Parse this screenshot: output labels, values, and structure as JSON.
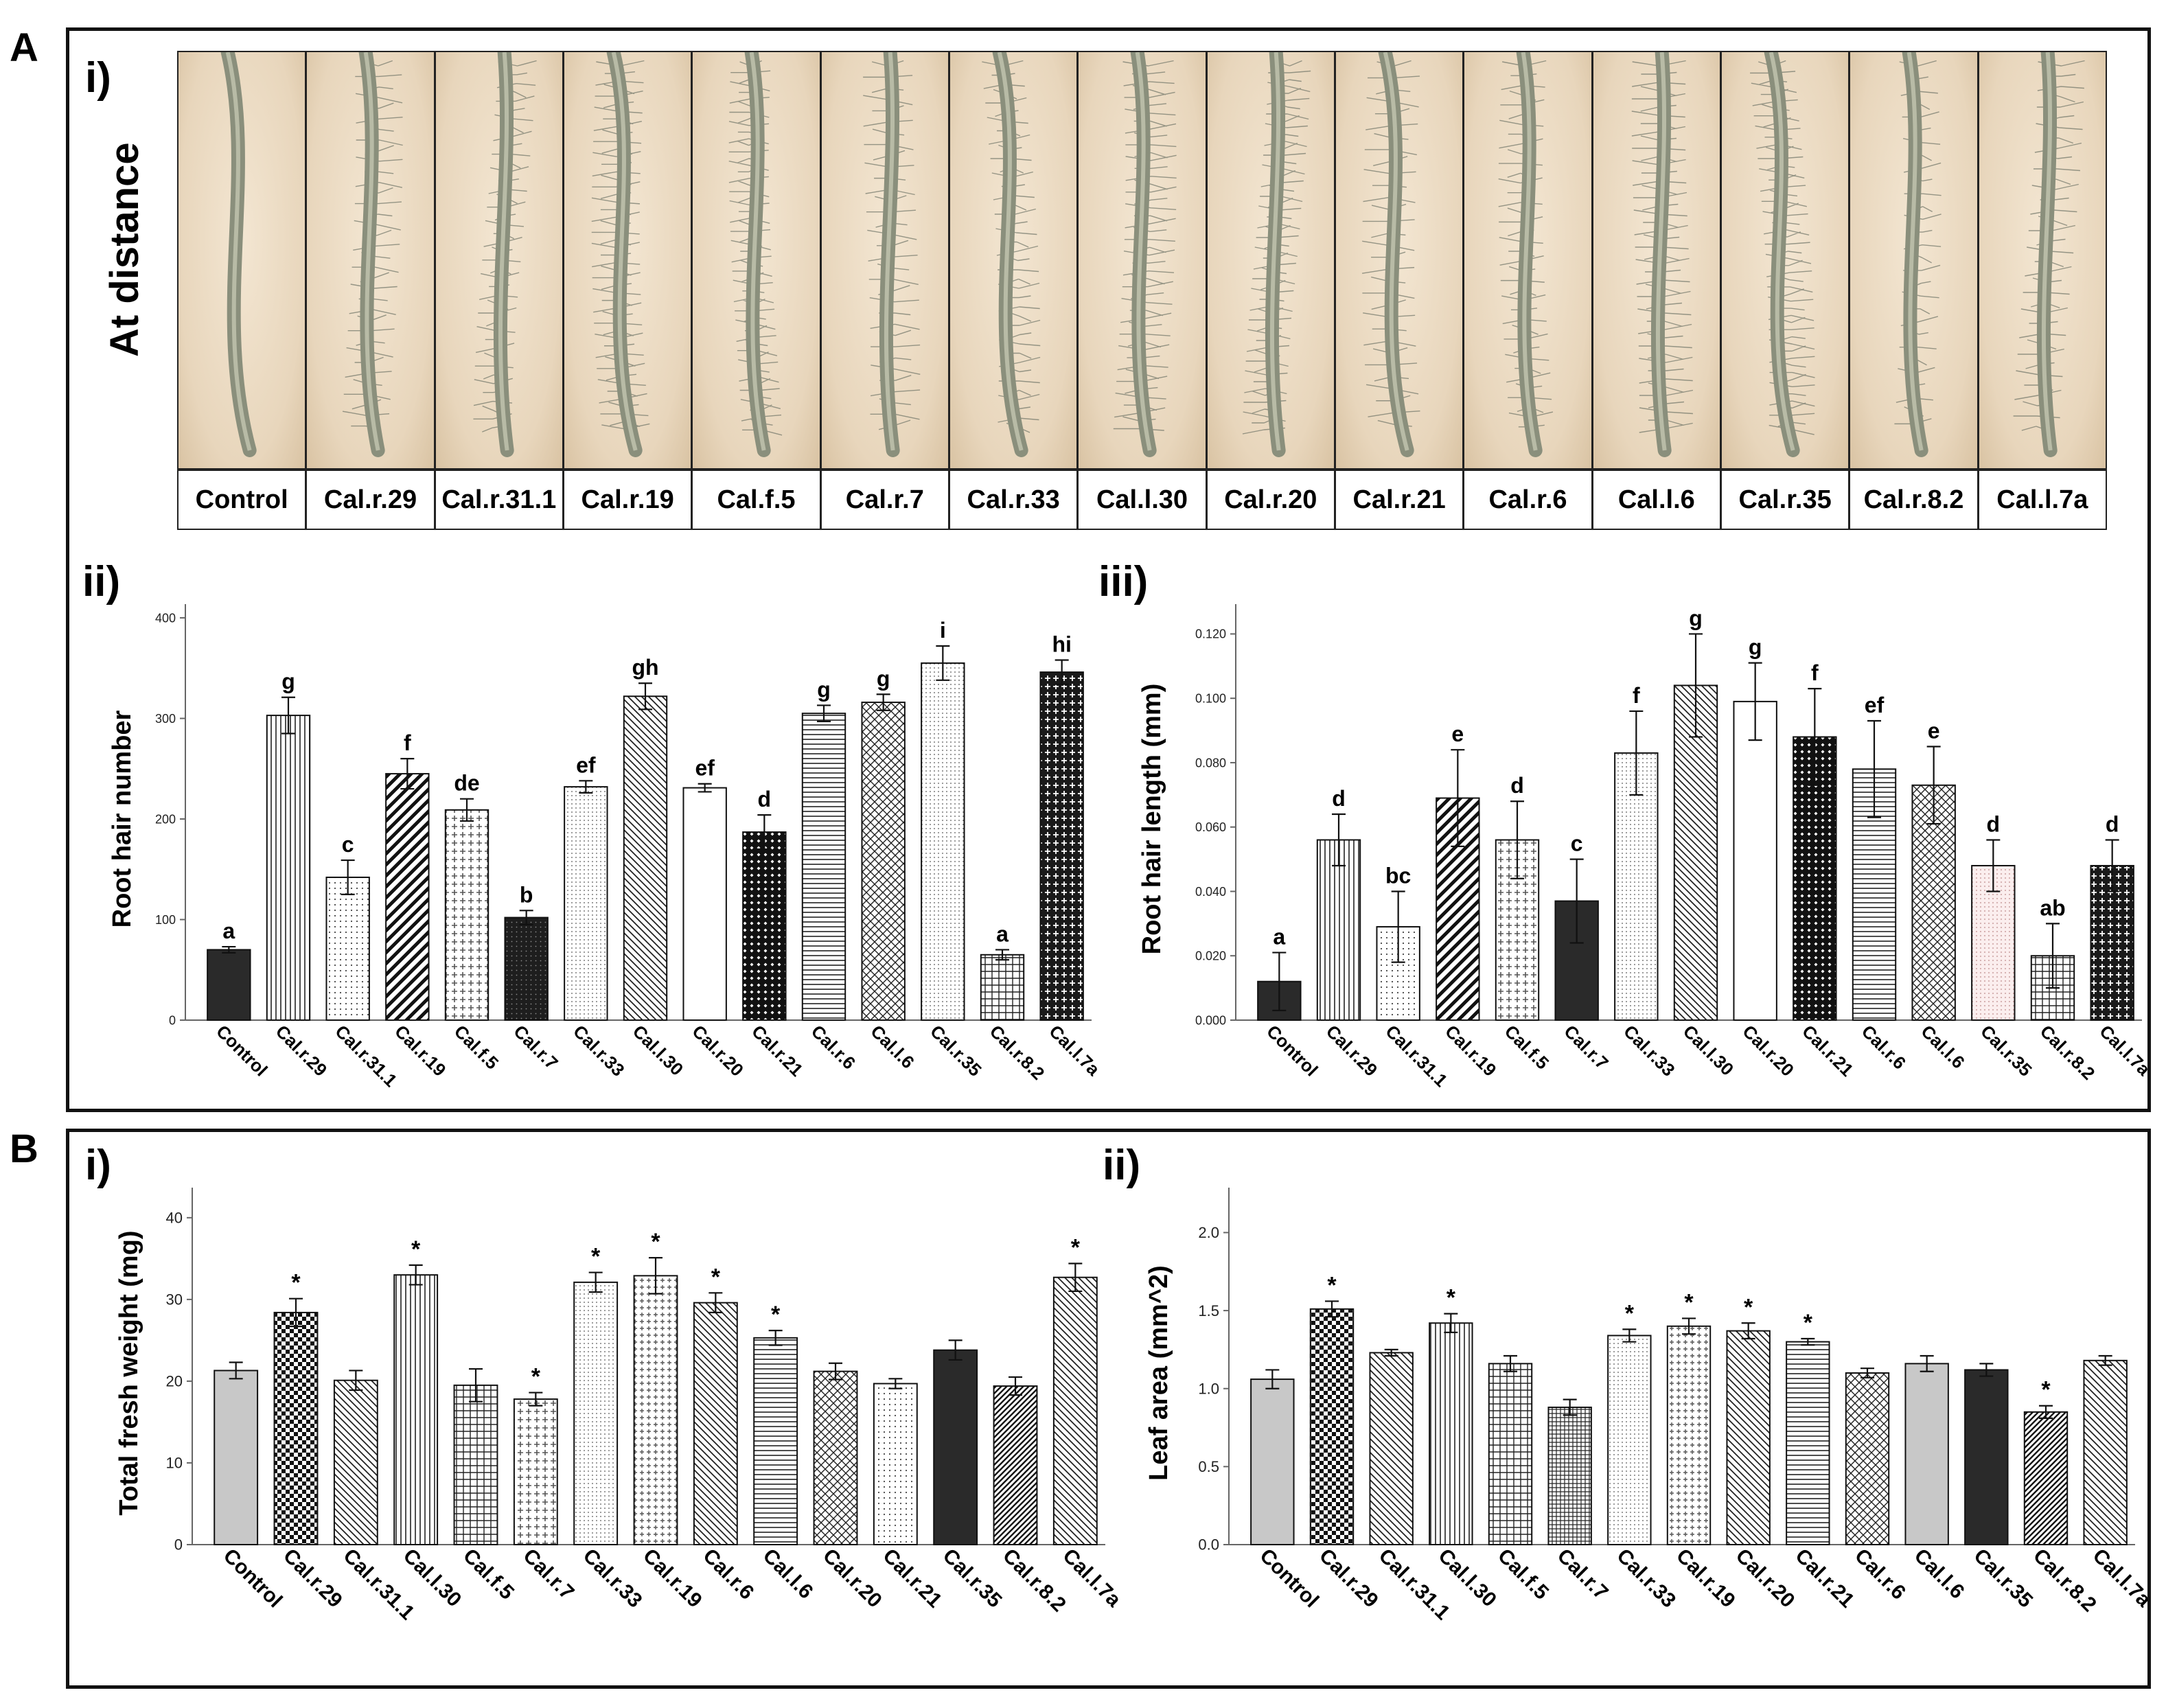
{
  "panels": {
    "A": {
      "letter": "A",
      "sub_i": "i)",
      "sub_ii": "ii)",
      "sub_iii": "iii)"
    },
    "B": {
      "letter": "B",
      "sub_i": "i)",
      "sub_ii": "ii)"
    }
  },
  "photos": {
    "row_title": "At distance",
    "labels": [
      "Control",
      "Cal.r.29",
      "Cal.r.31.1",
      "Cal.r.19",
      "Cal.f.5",
      "Cal.r.7",
      "Cal.r.33",
      "Cal.l.30",
      "Cal.r.20",
      "Cal.r.21",
      "Cal.r.6",
      "Cal.l.6",
      "Cal.r.35",
      "Cal.r.8.2",
      "Cal.l.7a"
    ]
  },
  "colors": {
    "background": "#ffffff",
    "frame": "#111111",
    "photo_bg": "#e8d6bc",
    "root": "#8a8f7c",
    "dark_bar": "#2a2a2a",
    "light_bar": "#c8c8c8"
  },
  "chart_data": [
    {
      "id": "A-ii",
      "type": "bar",
      "title": "",
      "xlabel": "",
      "ylabel": "Root hair number",
      "ylim": [
        0,
        400
      ],
      "yticks": [
        "0",
        "100",
        "200",
        "300",
        "400"
      ],
      "categories": [
        "Control",
        "Cal.r.29",
        "Cal.r.31.1",
        "Cal.r.19",
        "Cal.f.5",
        "Cal.r.7",
        "Cal.r.33",
        "Cal.l.30",
        "Cal.r.20",
        "Cal.r.21",
        "Cal.r.6",
        "Cal.l.6",
        "Cal.r.35",
        "Cal.r.8.2",
        "Cal.l.7a"
      ],
      "values": [
        70,
        303,
        142,
        245,
        209,
        102,
        232,
        322,
        231,
        187,
        305,
        316,
        355,
        65,
        346
      ],
      "errors": [
        3,
        18,
        17,
        15,
        11,
        7,
        6,
        13,
        4,
        17,
        8,
        8,
        17,
        5,
        12
      ],
      "labels": [
        "a",
        "g",
        "c",
        "f",
        "de",
        "b",
        "ef",
        "gh",
        "ef",
        "d",
        "g",
        "g",
        "i",
        "a",
        "hi"
      ],
      "patterns": [
        "dark",
        "vlines",
        "dots",
        "diag-thick",
        "cross-light",
        "dark-dots",
        "dots-fine",
        "diag",
        "white",
        "xhatch-dark",
        "hlines",
        "xhatch",
        "dots-fine",
        "grid",
        "cross-dark"
      ]
    },
    {
      "id": "A-iii",
      "type": "bar",
      "title": "",
      "xlabel": "",
      "ylabel": "Root hair length (mm)",
      "ylim": [
        0,
        0.125
      ],
      "yticks": [
        "0.000",
        "0.020",
        "0.040",
        "0.060",
        "0.080",
        "0.100",
        "0.120"
      ],
      "categories": [
        "Control",
        "Cal.r.29",
        "Cal.r.31.1",
        "Cal.r.19",
        "Cal.f.5",
        "Cal.r.7",
        "Cal.r.33",
        "Cal.l.30",
        "Cal.r.20",
        "Cal.r.21",
        "Cal.r.6",
        "Cal.l.6",
        "Cal.r.35",
        "Cal.r.8.2",
        "Cal.l.7a"
      ],
      "values": [
        0.012,
        0.056,
        0.029,
        0.069,
        0.056,
        0.037,
        0.083,
        0.104,
        0.099,
        0.088,
        0.078,
        0.073,
        0.048,
        0.02,
        0.048
      ],
      "errors": [
        0.009,
        0.008,
        0.011,
        0.015,
        0.012,
        0.013,
        0.013,
        0.016,
        0.012,
        0.015,
        0.015,
        0.012,
        0.008,
        0.01,
        0.008
      ],
      "labels": [
        "a",
        "d",
        "bc",
        "e",
        "d",
        "c",
        "f",
        "g",
        "g",
        "f",
        "ef",
        "e",
        "d",
        "ab",
        "d"
      ],
      "patterns": [
        "dark",
        "vlines",
        "dots",
        "diag-thick",
        "cross-light",
        "dark",
        "dots-fine",
        "diag",
        "white",
        "xhatch-dark",
        "hlines",
        "xhatch",
        "pink-dots",
        "grid",
        "cross-dark"
      ]
    },
    {
      "id": "B-i",
      "type": "bar",
      "title": "",
      "xlabel": "",
      "ylabel": "Total fresh weight (mg)",
      "ylim": [
        0,
        42
      ],
      "yticks": [
        "0",
        "10",
        "20",
        "30",
        "40"
      ],
      "categories": [
        "Control",
        "Cal.r.29",
        "Cal.r.31.1",
        "Cal.l.30",
        "Cal.f.5",
        "Cal.r.7",
        "Cal.r.33",
        "Cal.r.19",
        "Cal.r.6",
        "Cal.l.6",
        "Cal.r.20",
        "Cal.r.21",
        "Cal.r.35",
        "Cal.r.8.2",
        "Cal.l.7a"
      ],
      "values": [
        21.3,
        28.4,
        20.1,
        33.0,
        19.5,
        17.8,
        32.1,
        32.9,
        29.6,
        25.3,
        21.2,
        19.7,
        23.8,
        19.4,
        32.7
      ],
      "errors": [
        1.0,
        1.7,
        1.2,
        1.2,
        2.0,
        0.8,
        1.2,
        2.2,
        1.2,
        0.9,
        1.0,
        0.6,
        1.2,
        1.1,
        1.7
      ],
      "labels": [
        "",
        "*",
        "",
        "*",
        "",
        "*",
        "*",
        "*",
        "*",
        "*",
        "",
        "",
        "",
        "",
        "*"
      ],
      "patterns": [
        "light",
        "checker",
        "diag",
        "vlines",
        "grid",
        "cross-light",
        "dots-fine",
        "cross-dots",
        "diag",
        "hlines",
        "xhatch",
        "dots",
        "dark",
        "diag-dark",
        "diag"
      ]
    },
    {
      "id": "B-ii",
      "type": "bar",
      "title": "",
      "xlabel": "",
      "ylabel": "Leaf area (mm^2)",
      "ylim": [
        0,
        2.2
      ],
      "yticks": [
        "0.0",
        "0.5",
        "1.0",
        "1.5",
        "2.0"
      ],
      "categories": [
        "Control",
        "Cal.r.29",
        "Cal.r.31.1",
        "Cal.l.30",
        "Cal.f.5",
        "Cal.r.7",
        "Cal.r.33",
        "Cal.r.19",
        "Cal.r.20",
        "Cal.r.21",
        "Cal.r.6",
        "Cal.l.6",
        "Cal.r.35",
        "Cal.r.8.2",
        "Cal.l.7a"
      ],
      "values": [
        1.06,
        1.51,
        1.23,
        1.42,
        1.16,
        0.88,
        1.34,
        1.4,
        1.37,
        1.3,
        1.1,
        1.16,
        1.12,
        0.85,
        1.18
      ],
      "errors": [
        0.06,
        0.05,
        0.02,
        0.06,
        0.05,
        0.05,
        0.04,
        0.05,
        0.05,
        0.02,
        0.03,
        0.05,
        0.04,
        0.04,
        0.03
      ],
      "labels": [
        "",
        "*",
        "",
        "*",
        "",
        "",
        "*",
        "*",
        "*",
        "*",
        "",
        "",
        "",
        "*",
        ""
      ],
      "patterns": [
        "light",
        "checker",
        "diag",
        "vlines",
        "grid",
        "grid-fine",
        "dots-fine",
        "cross-dots",
        "diag",
        "hlines",
        "xhatch",
        "light",
        "dark",
        "diag-dark",
        "diag"
      ]
    }
  ]
}
